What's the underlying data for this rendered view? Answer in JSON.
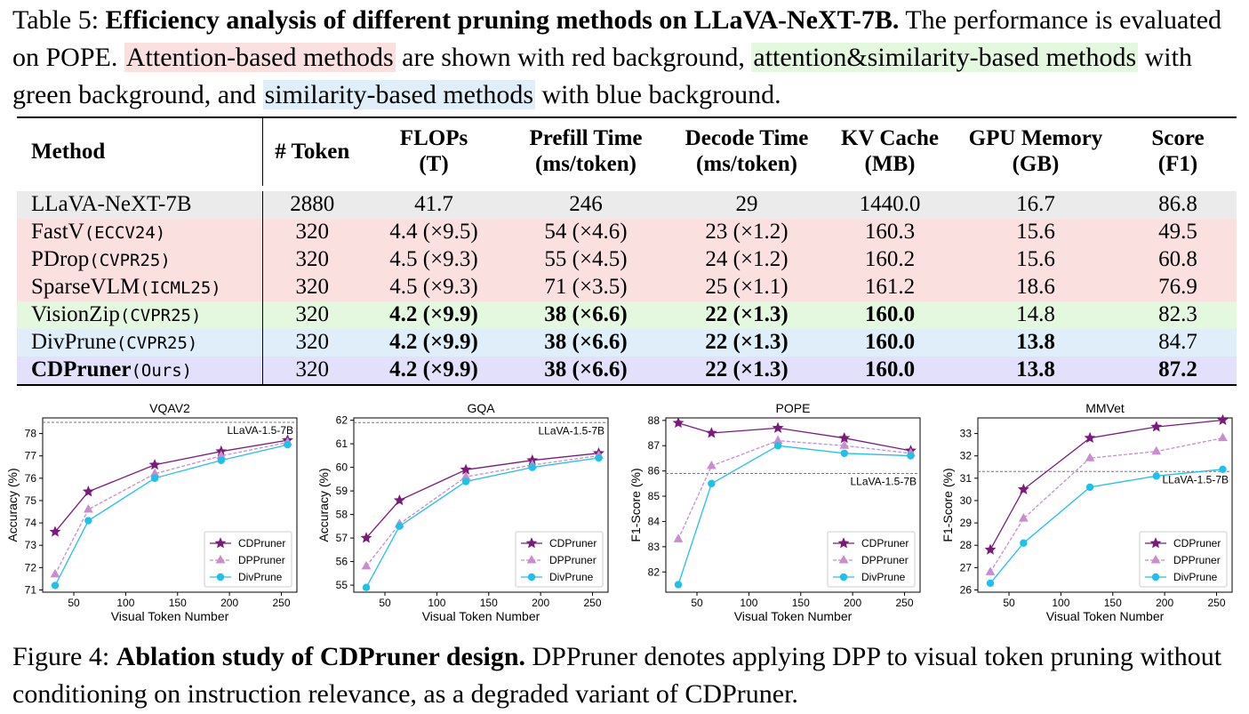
{
  "table_caption": {
    "label": "Table 5:",
    "bold_title": "Efficiency analysis of different pruning methods on LLaVA-NeXT-7B.",
    "text1": "The performance is evaluated on POPE.",
    "hl_attention": "Attention-based methods",
    "text2": "are shown with red background,",
    "hl_attsim": "attention&similarity-based methods",
    "text3": "with green background, and",
    "hl_sim": "similarity-based methods",
    "text4": "with blue background."
  },
  "table": {
    "headers": [
      {
        "line1": "Method",
        "line2": ""
      },
      {
        "line1": "# Token",
        "line2": ""
      },
      {
        "line1": "FLOPs",
        "line2": "(T)"
      },
      {
        "line1": "Prefill Time",
        "line2": "(ms/token)"
      },
      {
        "line1": "Decode Time",
        "line2": "(ms/token)"
      },
      {
        "line1": "KV Cache",
        "line2": "(MB)"
      },
      {
        "line1": "GPU Memory",
        "line2": "(GB)"
      },
      {
        "line1": "Score",
        "line2": "(F1)"
      }
    ],
    "rows": [
      {
        "name": "LLaVA-NeXT-7B",
        "venue": "",
        "tokens": "2880",
        "flops": "41.7",
        "prefill": "246",
        "decode": "29",
        "kv": "1440.0",
        "gpu": "16.7",
        "score": "86.8"
      },
      {
        "name": "FastV",
        "venue": "(ECCV24)",
        "tokens": "320",
        "flops": "4.4 (×9.5)",
        "prefill": "54 (×4.6)",
        "decode": "23 (×1.2)",
        "kv": "160.3",
        "gpu": "15.6",
        "score": "49.5"
      },
      {
        "name": "PDrop",
        "venue": "(CVPR25)",
        "tokens": "320",
        "flops": "4.5 (×9.3)",
        "prefill": "55 (×4.5)",
        "decode": "24 (×1.2)",
        "kv": "160.2",
        "gpu": "15.6",
        "score": "60.8"
      },
      {
        "name": "SparseVLM",
        "venue": "(ICML25)",
        "tokens": "320",
        "flops": "4.5 (×9.3)",
        "prefill": "71 (×3.5)",
        "decode": "25 (×1.1)",
        "kv": "161.2",
        "gpu": "18.6",
        "score": "76.9"
      },
      {
        "name": "VisionZip",
        "venue": "(CVPR25)",
        "tokens": "320",
        "flops": "4.2 (×9.9)",
        "prefill": "38 (×6.6)",
        "decode": "22 (×1.3)",
        "kv": "160.0",
        "gpu": "14.8",
        "score": "82.3"
      },
      {
        "name": "DivPrune",
        "venue": "(CVPR25)",
        "tokens": "320",
        "flops": "4.2 (×9.9)",
        "prefill": "38 (×6.6)",
        "decode": "22 (×1.3)",
        "kv": "160.0",
        "gpu": "13.8",
        "score": "84.7"
      },
      {
        "name": "CDPruner",
        "venue": "(Ours)",
        "tokens": "320",
        "flops": "4.2 (×9.9)",
        "prefill": "38 (×6.6)",
        "decode": "22 (×1.3)",
        "kv": "160.0",
        "gpu": "13.8",
        "score": "87.2"
      }
    ]
  },
  "row_colors": {
    "baseline": "#ebebeb",
    "attention": "#fbe0e0",
    "attention_similarity": "#e4f8e0",
    "similarity": "#dfeef8",
    "ours": "#e2e0fa"
  },
  "series_colors": {
    "CDPruner": "#7b1a7b",
    "DPPruner": "#c98ccc",
    "DivPrune": "#1ec0ec"
  },
  "chart_data": [
    {
      "type": "line",
      "title": "VQAV2",
      "xlabel": "Visual Token Number",
      "ylabel": "Accuracy (%)",
      "x": [
        32,
        64,
        128,
        192,
        256
      ],
      "xlim": [
        20,
        265
      ],
      "xticks": [
        50,
        100,
        150,
        200,
        250
      ],
      "ylim": [
        70.9,
        78.7
      ],
      "yticks": [
        71,
        72,
        73,
        74,
        75,
        76,
        77,
        78
      ],
      "reference": {
        "label": "LLaVA-1.5-7B",
        "value": 78.5
      },
      "legend": "lower-right",
      "series": [
        {
          "name": "CDPruner",
          "values": [
            73.6,
            75.4,
            76.6,
            77.2,
            77.7
          ]
        },
        {
          "name": "DPPruner",
          "values": [
            71.7,
            74.6,
            76.2,
            77.0,
            77.6
          ]
        },
        {
          "name": "DivPrune",
          "values": [
            71.2,
            74.1,
            76.0,
            76.8,
            77.5
          ]
        }
      ]
    },
    {
      "type": "line",
      "title": "GQA",
      "xlabel": "Visual Token Number",
      "ylabel": "Accuracy (%)",
      "x": [
        32,
        64,
        128,
        192,
        256
      ],
      "xlim": [
        20,
        265
      ],
      "xticks": [
        50,
        100,
        150,
        200,
        250
      ],
      "ylim": [
        54.7,
        62.1
      ],
      "yticks": [
        55,
        56,
        57,
        58,
        59,
        60,
        61,
        62
      ],
      "reference": {
        "label": "LLaVA-1.5-7B",
        "value": 61.9
      },
      "legend": "lower-right",
      "series": [
        {
          "name": "CDPruner",
          "values": [
            57.0,
            58.6,
            59.9,
            60.3,
            60.6
          ]
        },
        {
          "name": "DPPruner",
          "values": [
            55.8,
            57.6,
            59.6,
            60.1,
            60.5
          ]
        },
        {
          "name": "DivPrune",
          "values": [
            54.9,
            57.5,
            59.4,
            60.0,
            60.4
          ]
        }
      ]
    },
    {
      "type": "line",
      "title": "POPE",
      "xlabel": "Visual Token Number",
      "ylabel": "F1-Score (%)",
      "x": [
        32,
        64,
        128,
        192,
        256
      ],
      "xlim": [
        20,
        265
      ],
      "xticks": [
        50,
        100,
        150,
        200,
        250
      ],
      "ylim": [
        81.2,
        88.1
      ],
      "yticks": [
        82,
        83,
        84,
        85,
        86,
        87,
        88
      ],
      "reference": {
        "label": "LLaVA-1.5-7B",
        "value": 85.9
      },
      "legend": "lower-right",
      "series": [
        {
          "name": "CDPruner",
          "values": [
            87.9,
            87.5,
            87.7,
            87.3,
            86.8
          ]
        },
        {
          "name": "DPPruner",
          "values": [
            83.3,
            86.2,
            87.2,
            87.0,
            86.7
          ]
        },
        {
          "name": "DivPrune",
          "values": [
            81.5,
            85.5,
            87.0,
            86.7,
            86.6
          ]
        }
      ]
    },
    {
      "type": "line",
      "title": "MMVet",
      "xlabel": "Visual Token Number",
      "ylabel": "F1-Score (%)",
      "x": [
        32,
        64,
        128,
        192,
        256
      ],
      "xlim": [
        20,
        265
      ],
      "xticks": [
        50,
        100,
        150,
        200,
        250
      ],
      "ylim": [
        25.9,
        33.7
      ],
      "yticks": [
        26,
        27,
        28,
        29,
        30,
        31,
        32,
        33
      ],
      "reference": {
        "label": "LLaVA-1.5-7B",
        "value": 31.3
      },
      "legend": "lower-right",
      "series": [
        {
          "name": "CDPruner",
          "values": [
            27.8,
            30.5,
            32.8,
            33.3,
            33.6
          ]
        },
        {
          "name": "DPPruner",
          "values": [
            26.8,
            29.2,
            31.9,
            32.2,
            32.8
          ]
        },
        {
          "name": "DivPrune",
          "values": [
            26.3,
            28.1,
            30.6,
            31.1,
            31.4
          ]
        }
      ]
    }
  ],
  "figure_caption": {
    "label": "Figure 4:",
    "bold_title": "Ablation study of CDPruner design.",
    "text": "DPPruner denotes applying DPP to visual token pruning without conditioning on instruction relevance, as a degraded variant of CDPruner."
  }
}
